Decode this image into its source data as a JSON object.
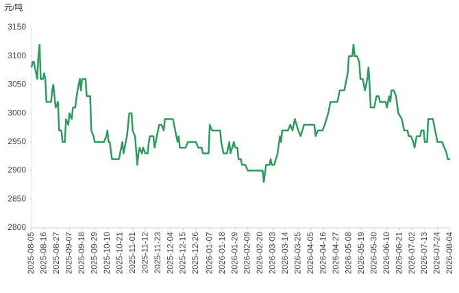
{
  "chart_data": {
    "type": "line",
    "y_unit": "元/吨",
    "x": [
      "2025-08-05",
      "2025-08-06",
      "2025-08-07",
      "2025-08-09",
      "2025-08-10",
      "2025-08-11",
      "2025-08-12",
      "2025-08-13",
      "2025-08-15",
      "2025-08-16",
      "2025-08-17",
      "2025-08-18",
      "2025-08-22",
      "2025-08-23",
      "2025-08-24",
      "2025-08-25",
      "2025-08-26",
      "2025-08-28",
      "2025-08-29",
      "2025-08-31",
      "2025-09-01",
      "2025-09-03",
      "2025-09-04",
      "2025-09-06",
      "2025-09-07",
      "2025-09-09",
      "2025-09-10",
      "2025-09-12",
      "2025-09-14",
      "2025-09-16",
      "2025-09-17",
      "2025-09-18",
      "2025-09-21",
      "2025-09-22",
      "2025-09-25",
      "2025-09-26",
      "2025-09-28",
      "2025-09-29",
      "2025-10-07",
      "2025-10-09",
      "2025-10-10",
      "2025-10-11",
      "2025-10-12",
      "2025-10-14",
      "2025-10-20",
      "2025-10-22",
      "2025-10-23",
      "2025-10-24",
      "2025-10-27",
      "2025-10-29",
      "2025-10-31",
      "2025-11-01",
      "2025-11-03",
      "2025-11-05",
      "2025-11-06",
      "2025-11-07",
      "2025-11-09",
      "2025-11-10",
      "2025-11-12",
      "2025-11-14",
      "2025-11-15",
      "2025-11-16",
      "2025-11-19",
      "2025-11-20",
      "2025-11-22",
      "2025-11-24",
      "2025-11-26",
      "2025-11-28",
      "2025-11-29",
      "2025-12-06",
      "2025-12-08",
      "2025-12-10",
      "2025-12-11",
      "2025-12-12",
      "2025-12-17",
      "2025-12-19",
      "2025-12-26",
      "2025-12-28",
      "2025-12-31",
      "2026-01-01",
      "2026-01-06",
      "2026-01-07",
      "2026-01-09",
      "2026-01-16",
      "2026-01-17",
      "2026-01-19",
      "2026-01-22",
      "2026-01-24",
      "2026-01-25",
      "2026-01-28",
      "2026-01-29",
      "2026-01-31",
      "2026-02-01",
      "2026-02-03",
      "2026-02-04",
      "2026-02-07",
      "2026-02-09",
      "2026-02-20",
      "2026-02-22",
      "2026-02-23",
      "2026-02-25",
      "2026-02-28",
      "2026-03-01",
      "2026-03-02",
      "2026-03-04",
      "2026-03-07",
      "2026-03-09",
      "2026-03-10",
      "2026-03-11",
      "2026-03-16",
      "2026-03-18",
      "2026-03-20",
      "2026-03-22",
      "2026-03-25",
      "2026-03-27",
      "2026-03-30",
      "2026-04-08",
      "2026-04-09",
      "2026-04-11",
      "2026-04-15",
      "2026-04-17",
      "2026-04-20",
      "2026-04-22",
      "2026-04-28",
      "2026-04-30",
      "2026-05-04",
      "2026-05-07",
      "2026-05-08",
      "2026-05-11",
      "2026-05-12",
      "2026-05-13",
      "2026-05-15",
      "2026-05-17",
      "2026-05-18",
      "2026-05-20",
      "2026-05-22",
      "2026-05-24",
      "2026-05-25",
      "2026-05-26",
      "2026-05-27",
      "2026-05-30",
      "2026-06-01",
      "2026-06-03",
      "2026-06-04",
      "2026-06-09",
      "2026-06-10",
      "2026-06-12",
      "2026-06-13",
      "2026-06-14",
      "2026-06-16",
      "2026-06-18",
      "2026-06-20",
      "2026-06-23",
      "2026-06-25",
      "2026-06-28",
      "2026-06-29",
      "2026-07-01",
      "2026-07-03",
      "2026-07-04",
      "2026-07-06",
      "2026-07-09",
      "2026-07-10",
      "2026-07-12",
      "2026-07-13",
      "2026-07-15",
      "2026-07-16",
      "2026-07-20",
      "2026-07-22",
      "2026-07-24",
      "2026-07-28",
      "2026-07-30",
      "2026-08-01",
      "2026-08-02",
      "2026-08-04"
    ],
    "series": [
      {
        "color": "#2e9a5c",
        "values": [
          3080,
          3090,
          3090,
          3070,
          3060,
          3100,
          3120,
          3060,
          3060,
          3070,
          3060,
          3020,
          3020,
          3040,
          3050,
          3030,
          3010,
          3020,
          2970,
          2970,
          2950,
          2950,
          2990,
          2980,
          3000,
          2990,
          3010,
          3010,
          3040,
          3060,
          3040,
          3060,
          3060,
          3030,
          3030,
          2970,
          2960,
          2950,
          2950,
          2960,
          2970,
          2950,
          2950,
          2920,
          2920,
          2940,
          2950,
          2930,
          2960,
          3000,
          3000,
          2970,
          2960,
          2910,
          2930,
          2940,
          2930,
          2940,
          2930,
          2930,
          2950,
          2960,
          2960,
          2940,
          2960,
          2980,
          2980,
          2970,
          2990,
          2990,
          2970,
          2950,
          2960,
          2940,
          2940,
          2950,
          2950,
          2940,
          2940,
          2930,
          2930,
          2980,
          2970,
          2970,
          2950,
          2930,
          2930,
          2950,
          2930,
          2950,
          2940,
          2940,
          2920,
          2920,
          2910,
          2910,
          2900,
          2900,
          2900,
          2880,
          2910,
          2910,
          2920,
          2910,
          2910,
          2930,
          2960,
          2950,
          2970,
          2970,
          2980,
          2970,
          2990,
          2970,
          2960,
          2980,
          2980,
          2960,
          2970,
          2970,
          2980,
          3000,
          3020,
          3020,
          3040,
          3040,
          3070,
          3100,
          3100,
          3120,
          3100,
          3100,
          3090,
          3060,
          3060,
          3040,
          3060,
          3080,
          3050,
          3010,
          3010,
          3030,
          3030,
          3020,
          3020,
          3010,
          3030,
          3020,
          3040,
          3040,
          3030,
          3000,
          2990,
          2970,
          2970,
          2960,
          2960,
          2950,
          2940,
          2960,
          2960,
          2970,
          2970,
          2950,
          2950,
          2990,
          2990,
          2970,
          2950,
          2950,
          2940,
          2930,
          2920,
          2920
        ]
      }
    ],
    "xlim": [
      "2025-08-05",
      "2026-08-04"
    ],
    "xticks": [
      "2025-08-05",
      "2025-08-16",
      "2025-08-27",
      "2025-09-07",
      "2025-09-18",
      "2025-09-29",
      "2025-10-10",
      "2025-10-21",
      "2025-11-01",
      "2025-11-12",
      "2025-11-23",
      "2025-12-04",
      "2025-12-15",
      "2025-12-26",
      "2026-01-07",
      "2026-01-18",
      "2026-01-29",
      "2026-02-09",
      "2026-02-20",
      "2026-03-03",
      "2026-03-14",
      "2026-03-25",
      "2026-04-05",
      "2026-04-16",
      "2026-04-27",
      "2026-05-08",
      "2026-05-19",
      "2026-05-30",
      "2026-06-10",
      "2026-06-21",
      "2026-07-02",
      "2026-07-13",
      "2026-07-24",
      "2026-08-04"
    ],
    "ylim": [
      2800,
      3150
    ],
    "yticks": [
      2800,
      2850,
      2900,
      2950,
      3000,
      3050,
      3100,
      3150
    ],
    "grid": false
  }
}
